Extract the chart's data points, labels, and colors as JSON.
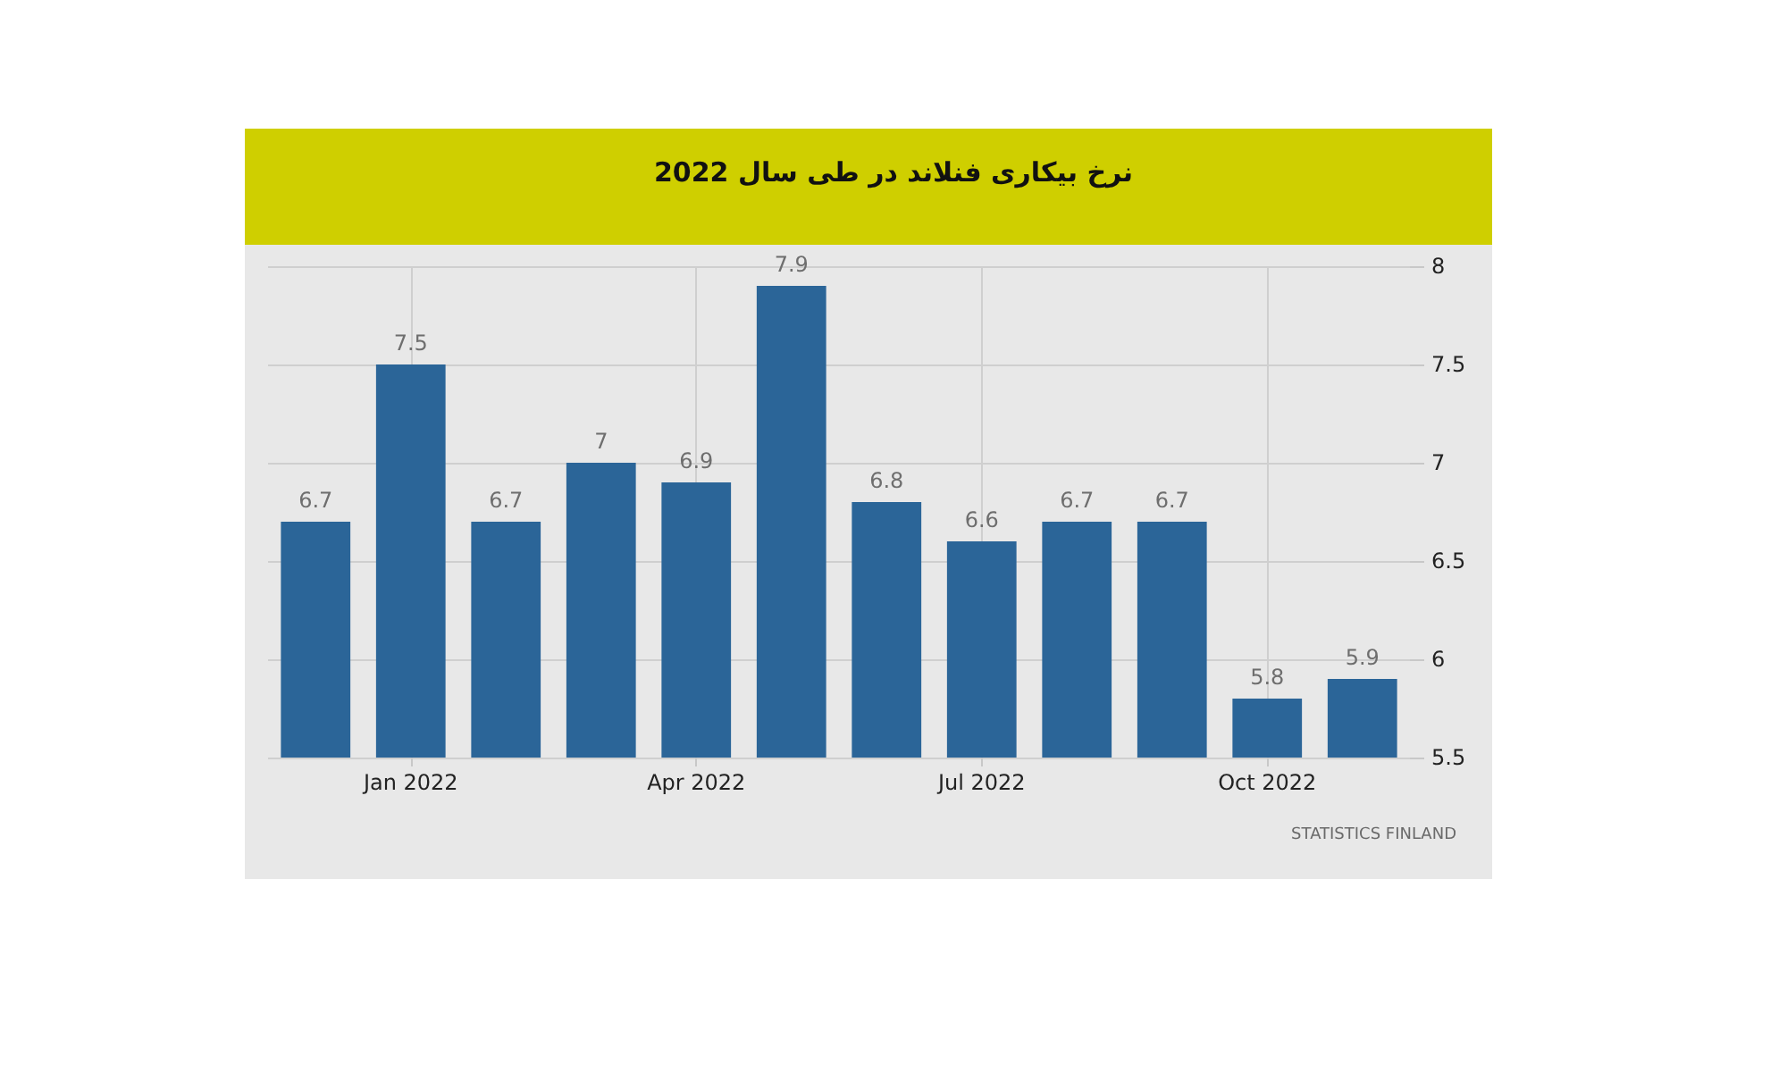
{
  "chart_data": {
    "type": "bar",
    "title": "نرخ بیکاری فنلاند در طی سال 2022",
    "categories": [
      null,
      "Jan 2022",
      null,
      null,
      "Apr 2022",
      null,
      null,
      "Jul 2022",
      null,
      null,
      "Oct 2022",
      null
    ],
    "values": [
      6.7,
      7.5,
      6.7,
      7,
      6.9,
      7.9,
      6.8,
      6.6,
      6.7,
      6.7,
      5.8,
      5.9
    ],
    "color": "#2b6598",
    "ylim": [
      5.5,
      8
    ],
    "yticks": [
      5.5,
      6,
      6.5,
      7,
      7.5,
      8
    ],
    "grid": true,
    "data_labels": true,
    "annotations": [
      "STATISTICS FINLAND"
    ]
  }
}
